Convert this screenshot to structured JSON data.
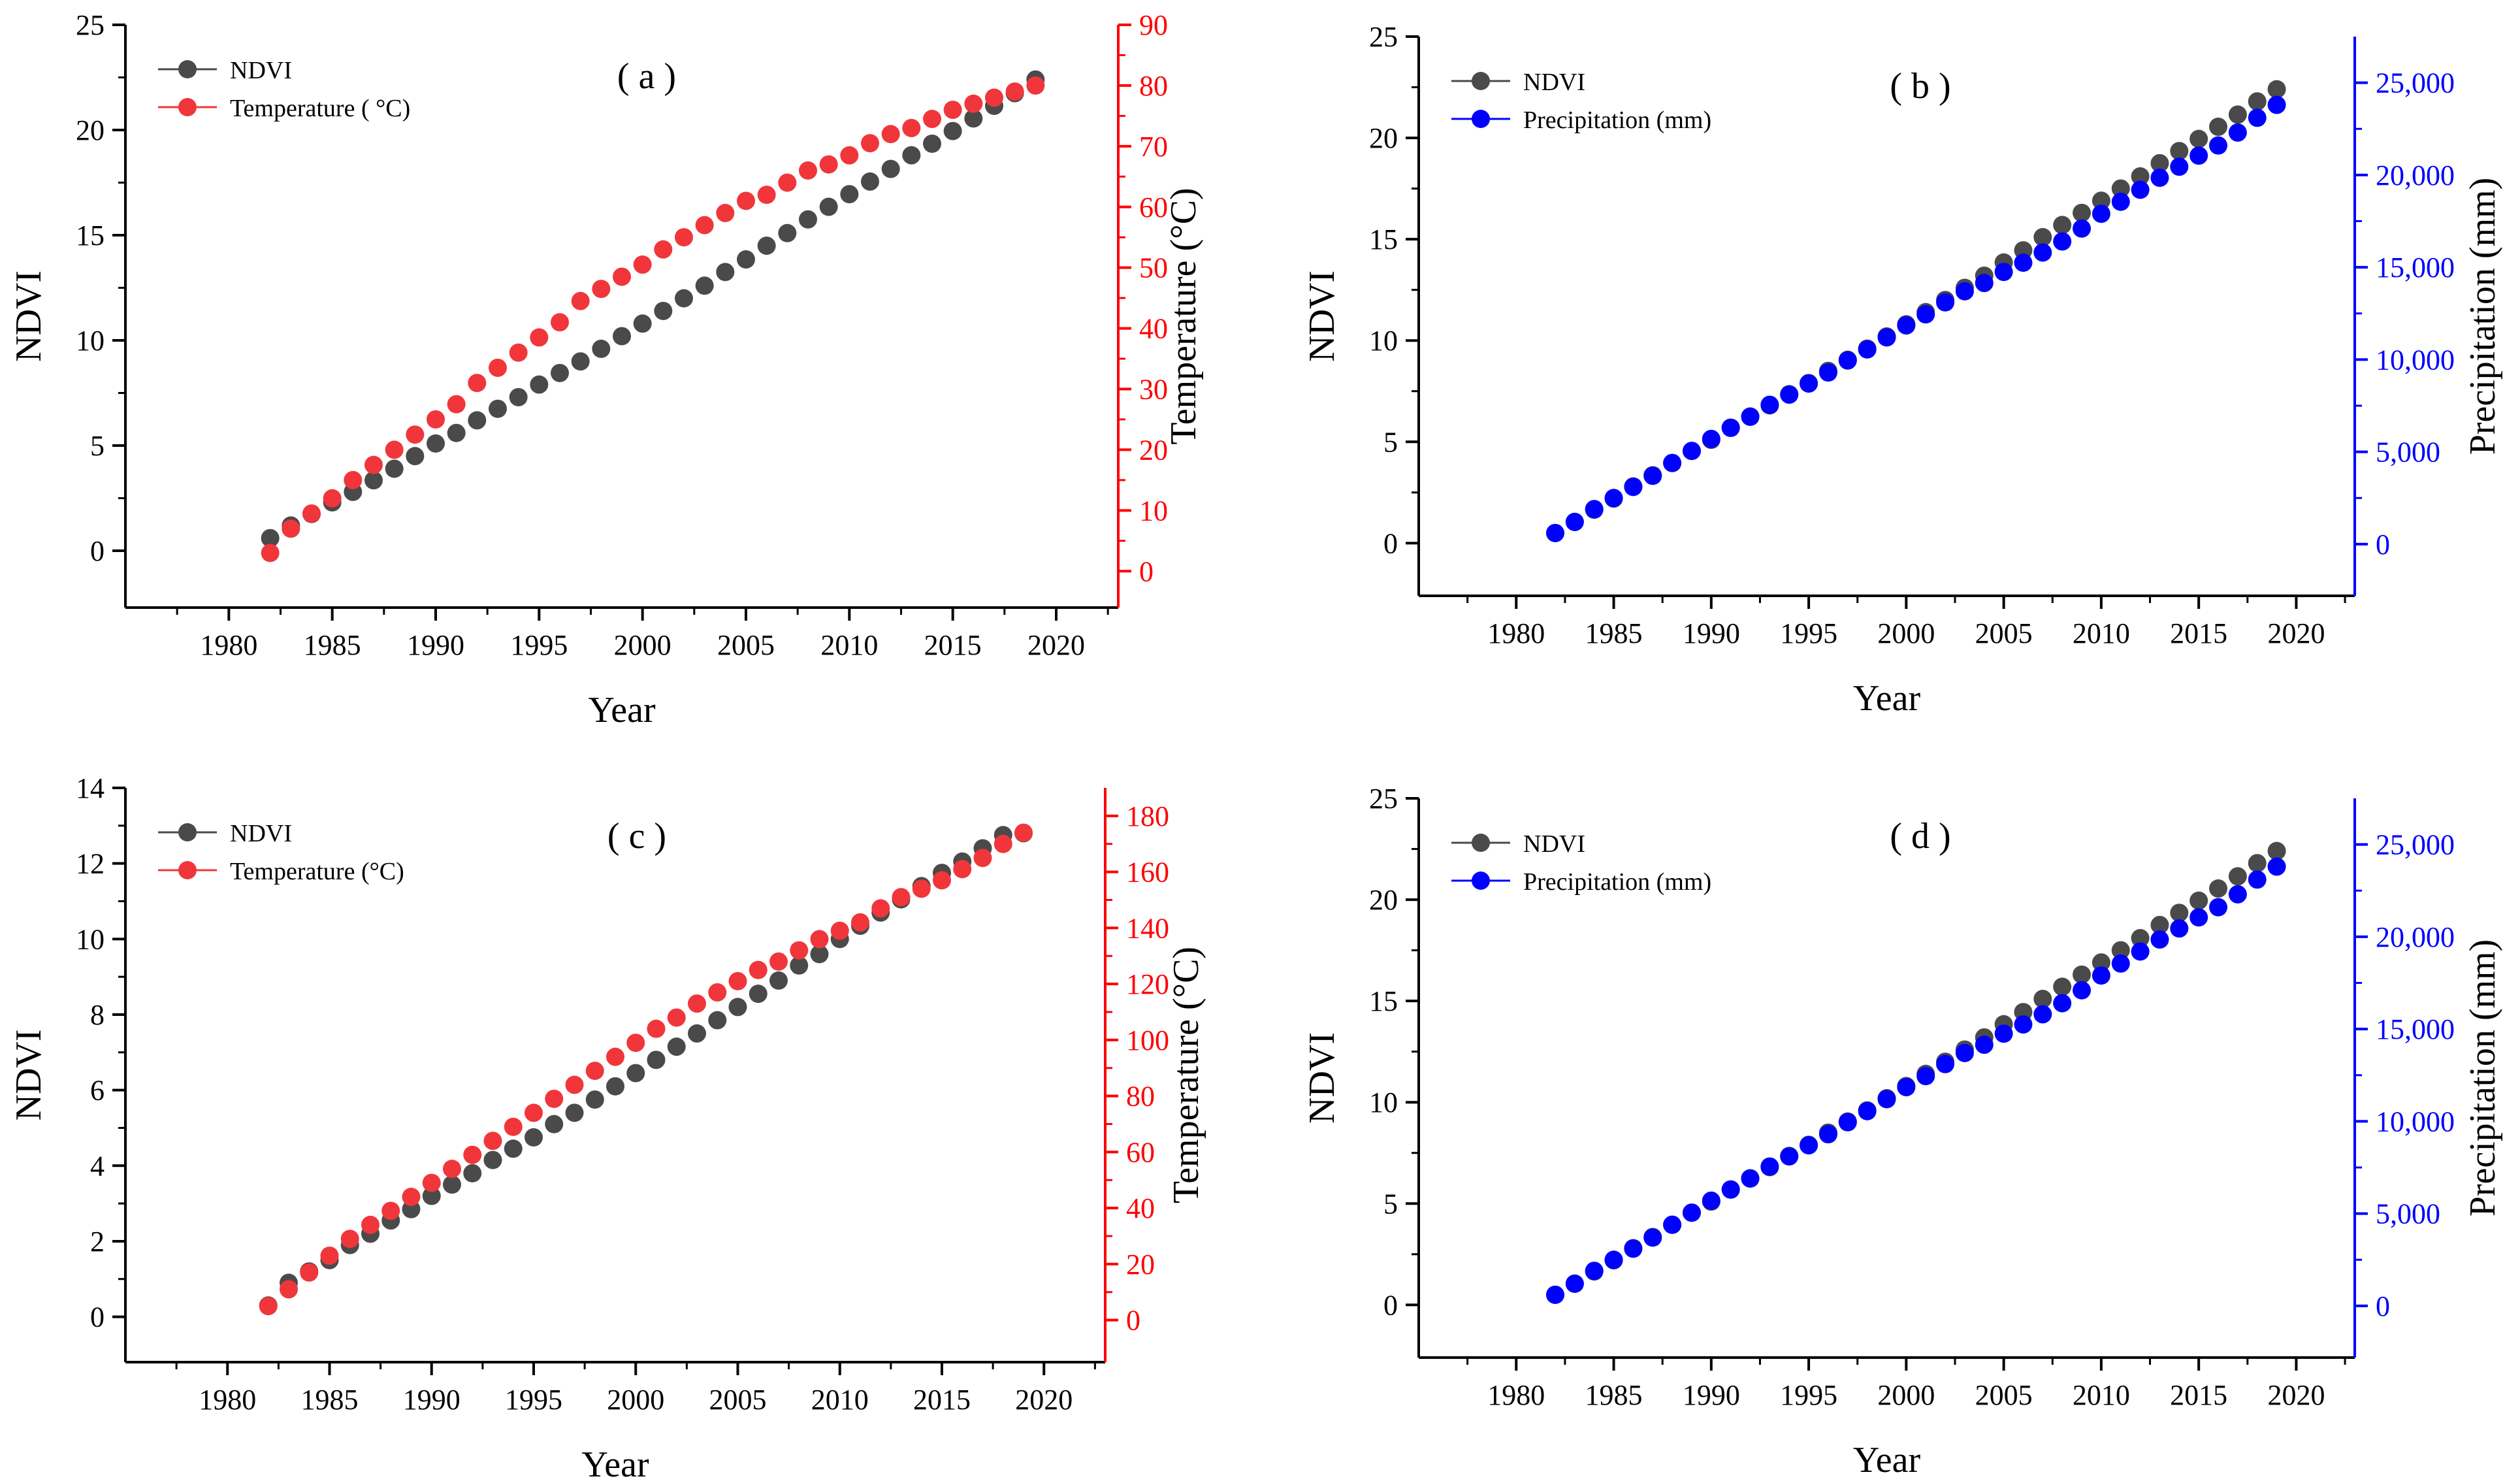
{
  "chart_data": [
    {
      "panel": "( a )",
      "type": "scatter",
      "xlabel": "Year",
      "x": [
        1982,
        1983,
        1984,
        1985,
        1986,
        1987,
        1988,
        1989,
        1990,
        1991,
        1992,
        1993,
        1994,
        1995,
        1996,
        1997,
        1998,
        1999,
        2000,
        2001,
        2002,
        2003,
        2004,
        2005,
        2006,
        2007,
        2008,
        2009,
        2010,
        2011,
        2012,
        2013,
        2014,
        2015,
        2016,
        2017,
        2018,
        2019
      ],
      "xlim": [
        1975,
        2023
      ],
      "xticks": [
        "1980",
        "1985",
        "1990",
        "1995",
        "2000",
        "2005",
        "2010",
        "2015",
        "2020"
      ],
      "left_axis": {
        "label": "NDVI",
        "lim": [
          -2.7,
          25
        ],
        "ticks": [
          "0",
          "5",
          "10",
          "15",
          "20",
          "25"
        ],
        "color": "#000000"
      },
      "right_axis": {
        "label": "Temperature (°C)",
        "lim": [
          -6.0,
          90
        ],
        "ticks": [
          "0",
          "10",
          "20",
          "30",
          "40",
          "50",
          "60",
          "70",
          "80",
          "90"
        ],
        "color": "#ff0000"
      },
      "series": [
        {
          "name": "NDVI",
          "axis": "left",
          "color": "#4a4a4a",
          "values": [
            0.6,
            1.2,
            1.75,
            2.3,
            2.8,
            3.35,
            3.9,
            4.5,
            5.1,
            5.6,
            6.2,
            6.75,
            7.3,
            7.9,
            8.45,
            9.0,
            9.6,
            10.2,
            10.8,
            11.4,
            12.0,
            12.6,
            13.25,
            13.85,
            14.5,
            15.1,
            15.75,
            16.35,
            16.95,
            17.55,
            18.15,
            18.8,
            19.35,
            19.95,
            20.55,
            21.15,
            21.75,
            22.4
          ]
        },
        {
          "name": "Temperature ( °C)",
          "axis": "right",
          "color": "#f0363a",
          "values": [
            3,
            7,
            9.5,
            12,
            15,
            17.5,
            20,
            22.5,
            25,
            27.5,
            31,
            33.5,
            36,
            38.5,
            41,
            44.5,
            46.5,
            48.5,
            50.5,
            53,
            55,
            57,
            59,
            61,
            62,
            64,
            66,
            67,
            68.5,
            70.5,
            72,
            73,
            74.5,
            76,
            77,
            78,
            79,
            80
          ]
        }
      ]
    },
    {
      "panel": "( b )",
      "type": "scatter",
      "xlabel": "Year",
      "x": [
        1982,
        1983,
        1984,
        1985,
        1986,
        1987,
        1988,
        1989,
        1990,
        1991,
        1992,
        1993,
        1994,
        1995,
        1996,
        1997,
        1998,
        1999,
        2000,
        2001,
        2002,
        2003,
        2004,
        2005,
        2006,
        2007,
        2008,
        2009,
        2010,
        2011,
        2012,
        2013,
        2014,
        2015,
        2016,
        2017,
        2018,
        2019
      ],
      "xlim": [
        1975,
        2023
      ],
      "xticks": [
        "1980",
        "1985",
        "1990",
        "1995",
        "2000",
        "2005",
        "2010",
        "2015",
        "2020"
      ],
      "left_axis": {
        "label": "NDVI",
        "lim": [
          -2.6,
          25
        ],
        "ticks": [
          "0",
          "5",
          "10",
          "15",
          "20",
          "25"
        ],
        "color": "#000000"
      },
      "right_axis": {
        "label": "Precipitation (mm)",
        "lim": [
          -2800,
          27500
        ],
        "ticks": [
          "0",
          "5,000",
          "10,000",
          "15,000",
          "20,000",
          "25,000"
        ],
        "color": "#0000ff"
      },
      "series": [
        {
          "name": "NDVI",
          "axis": "left",
          "color": "#4a4a4a",
          "values": [
            0.5,
            1.05,
            1.65,
            2.2,
            2.8,
            3.35,
            3.95,
            4.55,
            5.1,
            5.7,
            6.25,
            6.8,
            7.35,
            7.9,
            8.5,
            9.05,
            9.6,
            10.2,
            10.8,
            11.4,
            12.0,
            12.6,
            13.2,
            13.85,
            14.45,
            15.1,
            15.7,
            16.3,
            16.9,
            17.5,
            18.1,
            18.75,
            19.35,
            19.95,
            20.55,
            21.15,
            21.8,
            22.4
          ]
        },
        {
          "name": "Precipitation (mm)",
          "axis": "right",
          "color": "#0000ff",
          "values": [
            600,
            1200,
            1900,
            2500,
            3100,
            3700,
            4400,
            5050,
            5700,
            6300,
            6900,
            7550,
            8100,
            8700,
            9300,
            9950,
            10550,
            11200,
            11850,
            12450,
            13100,
            13700,
            14150,
            14750,
            15250,
            15800,
            16400,
            17100,
            17900,
            18550,
            19200,
            19850,
            20450,
            21050,
            21600,
            22300,
            23100,
            23800
          ]
        }
      ]
    },
    {
      "panel": "( c )",
      "type": "scatter",
      "xlabel": "Year",
      "x": [
        1982,
        1983,
        1984,
        1985,
        1986,
        1987,
        1988,
        1989,
        1990,
        1991,
        1992,
        1993,
        1994,
        1995,
        1996,
        1997,
        1998,
        1999,
        2000,
        2001,
        2002,
        2003,
        2004,
        2005,
        2006,
        2007,
        2008,
        2009,
        2010,
        2011,
        2012,
        2013,
        2014,
        2015,
        2016,
        2017,
        2018,
        2019
      ],
      "xlim": [
        1975,
        2023
      ],
      "xticks": [
        "1980",
        "1985",
        "1990",
        "1995",
        "2000",
        "2005",
        "2010",
        "2015",
        "2020"
      ],
      "left_axis": {
        "label": "NDVI",
        "lim": [
          -1.2,
          14
        ],
        "ticks": [
          "0",
          "2",
          "4",
          "6",
          "8",
          "10",
          "12",
          "14"
        ],
        "color": "#000000"
      },
      "right_axis": {
        "label": "Temperature (°C)",
        "lim": [
          -15,
          190
        ],
        "ticks": [
          "0",
          "20",
          "40",
          "60",
          "80",
          "100",
          "120",
          "140",
          "160",
          "180"
        ],
        "color": "#ff0000"
      },
      "series": [
        {
          "name": "NDVI",
          "axis": "left",
          "color": "#4a4a4a",
          "values": [
            0.3,
            0.9,
            1.2,
            1.5,
            1.9,
            2.2,
            2.55,
            2.85,
            3.2,
            3.5,
            3.8,
            4.15,
            4.45,
            4.75,
            5.1,
            5.4,
            5.75,
            6.1,
            6.45,
            6.8,
            7.15,
            7.5,
            7.85,
            8.2,
            8.55,
            8.9,
            9.3,
            9.6,
            10.0,
            10.35,
            10.7,
            11.05,
            11.4,
            11.75,
            12.05,
            12.4,
            12.75,
            12.8
          ]
        },
        {
          "name": "Temperature (°C)",
          "axis": "right",
          "color": "#f0363a",
          "values": [
            5,
            11,
            17,
            23,
            29,
            34,
            39,
            44,
            49,
            54,
            59,
            64,
            69,
            74,
            79,
            84,
            89,
            94,
            99,
            104,
            108,
            113,
            117,
            121,
            125,
            128,
            132,
            136,
            139,
            142,
            147,
            151,
            154,
            157,
            161,
            165,
            170,
            174
          ]
        }
      ]
    },
    {
      "panel": "( d )",
      "type": "scatter",
      "xlabel": "Year",
      "x": [
        1982,
        1983,
        1984,
        1985,
        1986,
        1987,
        1988,
        1989,
        1990,
        1991,
        1992,
        1993,
        1994,
        1995,
        1996,
        1997,
        1998,
        1999,
        2000,
        2001,
        2002,
        2003,
        2004,
        2005,
        2006,
        2007,
        2008,
        2009,
        2010,
        2011,
        2012,
        2013,
        2014,
        2015,
        2016,
        2017,
        2018,
        2019
      ],
      "xlim": [
        1975,
        2023
      ],
      "xticks": [
        "1980",
        "1985",
        "1990",
        "1995",
        "2000",
        "2005",
        "2010",
        "2015",
        "2020"
      ],
      "left_axis": {
        "label": "NDVI",
        "lim": [
          -2.6,
          25
        ],
        "ticks": [
          "0",
          "5",
          "10",
          "15",
          "20",
          "25"
        ],
        "color": "#000000"
      },
      "right_axis": {
        "label": "Precipitation (mm)",
        "lim": [
          -2800,
          27500
        ],
        "ticks": [
          "0",
          "5,000",
          "10,000",
          "15,000",
          "20,000",
          "25,000"
        ],
        "color": "#0000ff"
      },
      "series": [
        {
          "name": "NDVI",
          "axis": "left",
          "color": "#4a4a4a",
          "values": [
            0.5,
            1.05,
            1.65,
            2.2,
            2.8,
            3.35,
            3.95,
            4.55,
            5.1,
            5.7,
            6.25,
            6.8,
            7.35,
            7.9,
            8.5,
            9.05,
            9.6,
            10.2,
            10.8,
            11.4,
            12.0,
            12.6,
            13.2,
            13.85,
            14.45,
            15.1,
            15.7,
            16.3,
            16.9,
            17.5,
            18.1,
            18.75,
            19.35,
            19.95,
            20.55,
            21.15,
            21.8,
            22.4
          ]
        },
        {
          "name": "Precipitation (mm)",
          "axis": "right",
          "color": "#0000ff",
          "values": [
            600,
            1200,
            1900,
            2500,
            3100,
            3700,
            4400,
            5050,
            5700,
            6300,
            6900,
            7550,
            8100,
            8700,
            9300,
            9950,
            10550,
            11200,
            11850,
            12450,
            13100,
            13700,
            14150,
            14750,
            15250,
            15800,
            16400,
            17100,
            17900,
            18550,
            19200,
            19850,
            20450,
            21050,
            21600,
            22300,
            23100,
            23800
          ]
        }
      ]
    }
  ]
}
